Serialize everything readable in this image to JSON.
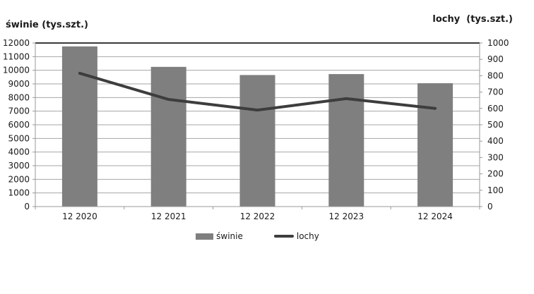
{
  "titles": {
    "left_axis_title": "świnie (tys.szt.)",
    "right_axis_title": "lochy  (tys.szt.)"
  },
  "legend": {
    "items": [
      {
        "label": "świnie",
        "swatch": "bar",
        "color": "#7f7f7f"
      },
      {
        "label": "lochy",
        "swatch": "line",
        "color": "#3d3d3d"
      }
    ]
  },
  "colors": {
    "bar": "#7f7f7f",
    "line": "#3d3d3d",
    "gridline": "#a6a6a6",
    "axis": "#999999",
    "plot_top_border": "#3a3a3a",
    "text": "#1a1a1a"
  },
  "chart_data": {
    "type": "bar",
    "subtype": "bar+line combo, dual y-axes",
    "categories": [
      "12 2020",
      "12 2021",
      "12 2022",
      "12 2023",
      "12 2024"
    ],
    "series": [
      {
        "name": "świnie",
        "type": "bar",
        "axis": "left",
        "color": "#7f7f7f",
        "values": [
          11750,
          10250,
          9650,
          9720,
          9050
        ]
      },
      {
        "name": "lochy",
        "type": "line",
        "axis": "right",
        "color": "#3d3d3d",
        "values": [
          815,
          655,
          590,
          660,
          600
        ]
      }
    ],
    "left_axis": {
      "title": "świnie (tys.szt.)",
      "min": 0,
      "max": 12000,
      "step": 1000
    },
    "right_axis": {
      "title": "lochy  (tys.szt.)",
      "min": 0,
      "max": 1000,
      "step": 100
    },
    "grid": true,
    "legend_position": "bottom"
  }
}
